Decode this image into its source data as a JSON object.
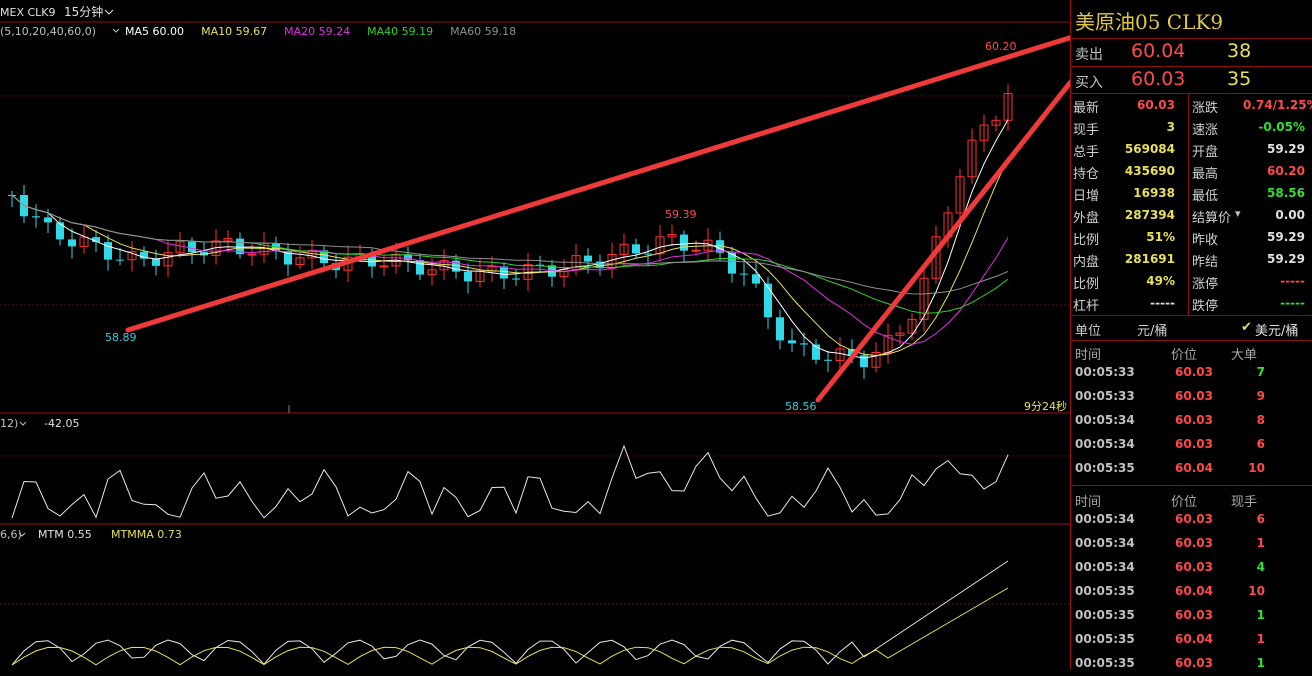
{
  "chart_header": {
    "symbol": "MEX CLK9",
    "period": "15分钟",
    "ma_params": "(5,10,20,40,60,0)",
    "ma": [
      {
        "label": "MA5 60.00",
        "color": "#ffffff"
      },
      {
        "label": "MA10 59.67",
        "color": "#e8e05a"
      },
      {
        "label": "MA20 59.24",
        "color": "#e030e0"
      },
      {
        "label": "MA40 59.19",
        "color": "#30d030"
      },
      {
        "label": "MA60 59.18",
        "color": "#909090"
      }
    ]
  },
  "price_labels": {
    "high": "60.20",
    "mid_high": "59.39",
    "low_left": "58.89",
    "low": "58.56"
  },
  "countdown": "9分24秒",
  "sub1": {
    "params": "12)",
    "value": "-42.05"
  },
  "sub2": {
    "params": "6,6)",
    "mtm": "MTM 0.55",
    "mtmma": "MTMMA 0.73"
  },
  "quote": {
    "title": "美原油05  CLK9",
    "ask": {
      "label": "卖出",
      "price": "60.04",
      "volume": "38"
    },
    "bid": {
      "label": "买入",
      "price": "60.03",
      "volume": "35"
    },
    "rows": [
      {
        "k": "最新",
        "v": "60.03",
        "vc": "#ff4a4a",
        "k2": "涨跌",
        "v2": "0.74/1.25%",
        "v2c": "#ff4a4a"
      },
      {
        "k": "现手",
        "v": "3",
        "vc": "#e8e05a",
        "k2": "速涨",
        "v2": "-0.05%",
        "v2c": "#30e030"
      },
      {
        "k": "总手",
        "v": "569084",
        "vc": "#e8e05a",
        "k2": "开盘",
        "v2": "59.29",
        "v2c": "#e0e0e0"
      },
      {
        "k": "持仓",
        "v": "435690",
        "vc": "#e8e05a",
        "k2": "最高",
        "v2": "60.20",
        "v2c": "#ff4a4a"
      },
      {
        "k": "日增",
        "v": "16938",
        "vc": "#e8e05a",
        "k2": "最低",
        "v2": "58.56",
        "v2c": "#30e030"
      },
      {
        "k": "外盘",
        "v": "287394",
        "vc": "#e8e05a",
        "k2": "结算价",
        "v2": "0.00",
        "v2c": "#e0e0e0"
      },
      {
        "k": "比例",
        "v": "51%",
        "vc": "#e8e05a",
        "k2": "昨收",
        "v2": "59.29",
        "v2c": "#e0e0e0"
      },
      {
        "k": "内盘",
        "v": "281691",
        "vc": "#e8e05a",
        "k2": "昨结",
        "v2": "59.29",
        "v2c": "#e0e0e0"
      },
      {
        "k": "比例",
        "v": "49%",
        "vc": "#e8e05a",
        "k2": "涨停",
        "v2": "-----",
        "v2c": "#ff4a4a"
      },
      {
        "k": "杠杆",
        "v": "-----",
        "vc": "#e0e0e0",
        "k2": "跌停",
        "v2": "-----",
        "v2c": "#30e030"
      }
    ],
    "unit": {
      "label": "单位",
      "cny": "元/桶",
      "usd": "美元/桶"
    },
    "big_orders": {
      "headers": [
        "时间",
        "价位",
        "大单"
      ],
      "rows": [
        {
          "t": "00:05:33",
          "p": "60.03",
          "n": "7",
          "nc": "#30e030"
        },
        {
          "t": "00:05:33",
          "p": "60.03",
          "n": "9",
          "nc": "#ff4a4a"
        },
        {
          "t": "00:05:34",
          "p": "60.03",
          "n": "8",
          "nc": "#ff4a4a"
        },
        {
          "t": "00:05:34",
          "p": "60.03",
          "n": "6",
          "nc": "#ff4a4a"
        },
        {
          "t": "00:05:35",
          "p": "60.04",
          "n": "10",
          "nc": "#ff4a4a"
        }
      ]
    },
    "ticks": {
      "headers": [
        "时间",
        "价位",
        "现手"
      ],
      "rows": [
        {
          "t": "00:05:34",
          "p": "60.03",
          "n": "6",
          "nc": "#ff4a4a"
        },
        {
          "t": "00:05:34",
          "p": "60.03",
          "n": "1",
          "nc": "#ff4a4a"
        },
        {
          "t": "00:05:34",
          "p": "60.03",
          "n": "4",
          "nc": "#30e030"
        },
        {
          "t": "00:05:35",
          "p": "60.04",
          "n": "10",
          "nc": "#ff4a4a"
        },
        {
          "t": "00:05:35",
          "p": "60.03",
          "n": "1",
          "nc": "#30e030"
        },
        {
          "t": "00:05:35",
          "p": "60.04",
          "n": "1",
          "nc": "#ff4a4a"
        },
        {
          "t": "00:05:35",
          "p": "60.03",
          "n": "1",
          "nc": "#30e030"
        }
      ]
    }
  }
}
